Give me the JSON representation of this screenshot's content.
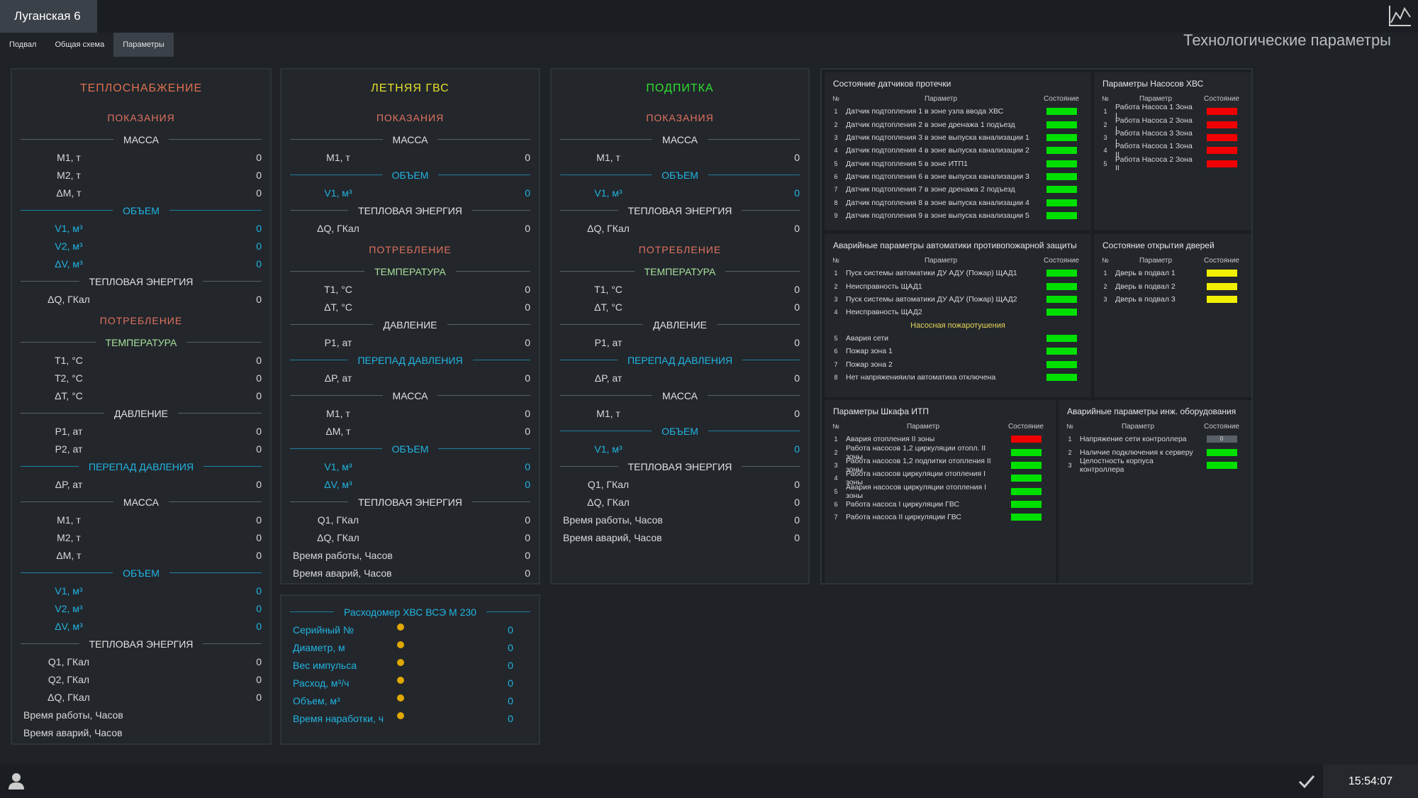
{
  "header": {
    "title": "Луганская 6",
    "page_title": "Технологические параметры",
    "tabs": [
      "Подвал",
      "Общая схема",
      "Параметры"
    ],
    "active_tab": 2
  },
  "panels": [
    {
      "title": "ТЕПЛОСНАБЖЕНИЕ",
      "color": "#e0704f",
      "rows": [
        {
          "kind": "heading",
          "text": "ПОКАЗАНИЯ"
        },
        {
          "kind": "divider",
          "text": "МАССА",
          "style": "white"
        },
        {
          "kind": "param",
          "label": "M1, т",
          "value": 0
        },
        {
          "kind": "param",
          "label": "M2, т",
          "value": 0
        },
        {
          "kind": "param",
          "label": "ΔM, т",
          "value": 0
        },
        {
          "kind": "divider",
          "text": "ОБЪЕМ",
          "style": "cyan"
        },
        {
          "kind": "param",
          "label": "V1, м³",
          "value": 0,
          "style": "cyan"
        },
        {
          "kind": "param",
          "label": "V2, м³",
          "value": 0,
          "style": "cyan"
        },
        {
          "kind": "param",
          "label": "ΔV, м³",
          "value": 0,
          "style": "cyan"
        },
        {
          "kind": "divider",
          "text": "ТЕПЛОВАЯ ЭНЕРГИЯ",
          "style": "white"
        },
        {
          "kind": "param",
          "label": "ΔQ, ГКал",
          "value": 0
        },
        {
          "kind": "heading",
          "text": "ПОТРЕБЛЕНИЕ"
        },
        {
          "kind": "divider",
          "text": "ТЕМПЕРАТУРА",
          "style": "green"
        },
        {
          "kind": "param",
          "label": "T1, °C",
          "value": 0
        },
        {
          "kind": "param",
          "label": "T2, °C",
          "value": 0
        },
        {
          "kind": "param",
          "label": "ΔT, °C",
          "value": 0
        },
        {
          "kind": "divider",
          "text": "ДАВЛЕНИЕ",
          "style": "white"
        },
        {
          "kind": "param",
          "label": "P1, ат",
          "value": 0
        },
        {
          "kind": "param",
          "label": "P2, ат",
          "value": 0
        },
        {
          "kind": "divider",
          "text": "ПЕРЕПАД ДАВЛЕНИЯ",
          "style": "cyan"
        },
        {
          "kind": "param",
          "label": "ΔP, ат",
          "value": 0
        },
        {
          "kind": "divider",
          "text": "МАССА",
          "style": "white"
        },
        {
          "kind": "param",
          "label": "M1, т",
          "value": 0
        },
        {
          "kind": "param",
          "label": "M2, т",
          "value": 0
        },
        {
          "kind": "param",
          "label": "ΔM, т",
          "value": 0
        },
        {
          "kind": "divider",
          "text": "ОБЪЕМ",
          "style": "cyan"
        },
        {
          "kind": "param",
          "label": "V1, м³",
          "value": 0,
          "style": "cyan"
        },
        {
          "kind": "param",
          "label": "V2, м³",
          "value": 0,
          "style": "cyan"
        },
        {
          "kind": "param",
          "label": "ΔV, м³",
          "value": 0,
          "style": "cyan"
        },
        {
          "kind": "divider",
          "text": "ТЕПЛОВАЯ ЭНЕРГИЯ",
          "style": "white"
        },
        {
          "kind": "param",
          "label": "Q1, ГКал",
          "value": 0
        },
        {
          "kind": "param",
          "label": "Q2, ГКал",
          "value": 0
        },
        {
          "kind": "param",
          "label": "ΔQ, ГКал",
          "value": 0
        },
        {
          "kind": "total",
          "label": "Время работы, Часов"
        },
        {
          "kind": "total",
          "label": "Время аварий, Часов"
        }
      ]
    },
    {
      "title": "ЛЕТНЯЯ ГВС",
      "color": "#e6e02a",
      "rows": [
        {
          "kind": "heading",
          "text": "ПОКАЗАНИЯ"
        },
        {
          "kind": "divider",
          "text": "МАССА",
          "style": "white"
        },
        {
          "kind": "param",
          "label": "M1, т",
          "value": 0
        },
        {
          "kind": "divider",
          "text": "ОБЪЕМ",
          "style": "cyan"
        },
        {
          "kind": "param",
          "label": "V1, м³",
          "value": 0,
          "style": "cyan"
        },
        {
          "kind": "divider",
          "text": "ТЕПЛОВАЯ ЭНЕРГИЯ",
          "style": "white"
        },
        {
          "kind": "param",
          "label": "ΔQ, ГКал",
          "value": 0
        },
        {
          "kind": "heading",
          "text": "ПОТРЕБЛЕНИЕ"
        },
        {
          "kind": "divider",
          "text": "ТЕМПЕРАТУРА",
          "style": "green"
        },
        {
          "kind": "param",
          "label": "T1, °C",
          "value": 0
        },
        {
          "kind": "param",
          "label": "ΔT, °C",
          "value": 0
        },
        {
          "kind": "divider",
          "text": "ДАВЛЕНИЕ",
          "style": "white"
        },
        {
          "kind": "param",
          "label": "P1, ат",
          "value": 0
        },
        {
          "kind": "divider",
          "text": "ПЕРЕПАД ДАВЛЕНИЯ",
          "style": "cyan"
        },
        {
          "kind": "param",
          "label": "ΔP, ат",
          "value": 0
        },
        {
          "kind": "divider",
          "text": "МАССА",
          "style": "white"
        },
        {
          "kind": "param",
          "label": "M1, т",
          "value": 0
        },
        {
          "kind": "param",
          "label": "ΔM, т",
          "value": 0
        },
        {
          "kind": "divider",
          "text": "ОБЪЕМ",
          "style": "cyan"
        },
        {
          "kind": "param",
          "label": "V1, м³",
          "value": 0,
          "style": "cyan"
        },
        {
          "kind": "param",
          "label": "ΔV, м³",
          "value": 0,
          "style": "cyan"
        },
        {
          "kind": "divider",
          "text": "ТЕПЛОВАЯ ЭНЕРГИЯ",
          "style": "white"
        },
        {
          "kind": "param",
          "label": "Q1, ГКал",
          "value": 0
        },
        {
          "kind": "param",
          "label": "ΔQ, ГКал",
          "value": 0
        },
        {
          "kind": "total",
          "label": "Время работы, Часов",
          "value": 0
        },
        {
          "kind": "total",
          "label": "Время аварий, Часов",
          "value": 0
        }
      ]
    },
    {
      "title": "ПОДПИТКА",
      "color": "#2ee02e",
      "rows": [
        {
          "kind": "heading",
          "text": "ПОКАЗАНИЯ"
        },
        {
          "kind": "divider",
          "text": "МАССА",
          "style": "white"
        },
        {
          "kind": "param",
          "label": "M1, т",
          "value": 0
        },
        {
          "kind": "divider",
          "text": "ОБЪЕМ",
          "style": "cyan"
        },
        {
          "kind": "param",
          "label": "V1, м³",
          "value": 0,
          "style": "cyan"
        },
        {
          "kind": "divider",
          "text": "ТЕПЛОВАЯ ЭНЕРГИЯ",
          "style": "white"
        },
        {
          "kind": "param",
          "label": "ΔQ, ГКал",
          "value": 0
        },
        {
          "kind": "heading",
          "text": "ПОТРЕБЛЕНИЕ"
        },
        {
          "kind": "divider",
          "text": "ТЕМПЕРАТУРА",
          "style": "green"
        },
        {
          "kind": "param",
          "label": "T1, °C",
          "value": 0
        },
        {
          "kind": "param",
          "label": "ΔT, °C",
          "value": 0
        },
        {
          "kind": "divider",
          "text": "ДАВЛЕНИЕ",
          "style": "white"
        },
        {
          "kind": "param",
          "label": "P1, ат",
          "value": 0
        },
        {
          "kind": "divider",
          "text": "ПЕРЕПАД ДАВЛЕНИЯ",
          "style": "cyan"
        },
        {
          "kind": "param",
          "label": "ΔP, ат",
          "value": 0
        },
        {
          "kind": "divider",
          "text": "МАССА",
          "style": "white"
        },
        {
          "kind": "param",
          "label": "M1, т",
          "value": 0
        },
        {
          "kind": "divider",
          "text": "ОБЪЕМ",
          "style": "cyan"
        },
        {
          "kind": "param",
          "label": "V1, м³",
          "value": 0,
          "style": "cyan"
        },
        {
          "kind": "divider",
          "text": "ТЕПЛОВАЯ ЭНЕРГИЯ",
          "style": "white"
        },
        {
          "kind": "param",
          "label": "Q1, ГКал",
          "value": 0
        },
        {
          "kind": "param",
          "label": "ΔQ, ГКал",
          "value": 0
        },
        {
          "kind": "total",
          "label": "Время работы, Часов",
          "value": 0
        },
        {
          "kind": "total",
          "label": "Время аварий, Часов",
          "value": 0
        }
      ]
    }
  ],
  "flowmeter": {
    "title": "Расходомер ХВС ВСЭ М 230",
    "rows": [
      {
        "label": "Серийный №",
        "value": 0
      },
      {
        "label": "Диаметр, м",
        "value": 0
      },
      {
        "label": "Вес импульса",
        "value": 0
      },
      {
        "label": "Расход, м³/ч",
        "value": 0
      },
      {
        "label": "Объем, м³",
        "value": 0
      },
      {
        "label": "Время наработки, ч",
        "value": 0
      }
    ]
  },
  "tables": [
    {
      "title": "Состояние датчиков протечки",
      "columns": [
        "№",
        "Параметр",
        "Состояние"
      ],
      "rows": [
        {
          "n": 1,
          "label": "Датчик подтопления 1 в зоне узла ввода ХВС",
          "state": "green"
        },
        {
          "n": 2,
          "label": "Датчик подтопления 2  в зоне дренажа 1 подъезд",
          "state": "green"
        },
        {
          "n": 3,
          "label": "Датчик подтопления 3 в зоне выпуска канализации 1",
          "state": "green"
        },
        {
          "n": 4,
          "label": "Датчик подтопления 4 в зоне выпуска канализации 2",
          "state": "green"
        },
        {
          "n": 5,
          "label": "Датчик подтопления 5 в зоне ИТП1",
          "state": "green"
        },
        {
          "n": 6,
          "label": "Датчик подтопления 6 в зоне выпуска канализации 3",
          "state": "green"
        },
        {
          "n": 7,
          "label": "Датчик подтопления 7 в зоне дренажа 2 подъезд",
          "state": "green"
        },
        {
          "n": 8,
          "label": "Датчик подтопления 8 в зоне выпуска канализации 4",
          "state": "green"
        },
        {
          "n": 9,
          "label": "Датчик подтопления 9 в зоне выпуска канализации 5",
          "state": "green"
        }
      ]
    },
    {
      "title": "Параметры Насосов ХВС",
      "columns": [
        "№",
        "Параметр",
        "Состояние"
      ],
      "rows": [
        {
          "n": 1,
          "label": "Работа Насоса 1 Зона I",
          "state": "red"
        },
        {
          "n": 2,
          "label": "Работа Насоса 2 Зона I",
          "state": "red"
        },
        {
          "n": 3,
          "label": "Работа Насоса 3 Зона I",
          "state": "red"
        },
        {
          "n": 4,
          "label": "Работа Насоса 1 Зона II",
          "state": "red"
        },
        {
          "n": 5,
          "label": "Работа Насоса 2 Зона II",
          "state": "red"
        }
      ]
    },
    {
      "title": "Аварийные параметры автоматики противопожарной защиты",
      "columns": [
        "№",
        "Параметр",
        "Состояние"
      ],
      "rows": [
        {
          "n": 1,
          "label": "Пуск системы автоматики ДУ АДУ (Пожар) ЩАД1",
          "state": "green"
        },
        {
          "n": 2,
          "label": "Неисправность ЩАД1",
          "state": "green"
        },
        {
          "n": 3,
          "label": "Пуск системы автоматики ДУ АДУ (Пожар) ЩАД2",
          "state": "green"
        },
        {
          "n": 4,
          "label": "Неисправность ЩАД2",
          "state": "green"
        },
        {
          "subheader": "Насосная пожаротушения"
        },
        {
          "n": 5,
          "label": "Авария сети",
          "state": "green"
        },
        {
          "n": 6,
          "label": "Пожар зона 1",
          "state": "green"
        },
        {
          "n": 7,
          "label": "Пожар зона 2",
          "state": "green"
        },
        {
          "n": 8,
          "label": "Нет напряженияили автоматика отключена",
          "state": "green"
        }
      ]
    },
    {
      "title": "Состояние открытия дверей",
      "columns": [
        "№",
        "Параметр",
        "Состояние"
      ],
      "rows": [
        {
          "n": 1,
          "label": "Дверь  в подвал 1",
          "state": "yellow"
        },
        {
          "n": 2,
          "label": "Дверь  в подвал 2",
          "state": "yellow"
        },
        {
          "n": 3,
          "label": "Дверь  в подвал 3",
          "state": "yellow"
        }
      ]
    },
    {
      "title": "Параметры Шкафа  ИТП",
      "columns": [
        "№",
        "Параметр",
        "Состояние"
      ],
      "rows": [
        {
          "n": 1,
          "label": "Авария отопления II зоны",
          "state": "red"
        },
        {
          "n": 2,
          "label": "Работа насосов 1,2 циркуляции отопл. II зоны",
          "state": "green"
        },
        {
          "n": 3,
          "label": "Работа насосов 1,2 подпитки отопления II зоны",
          "state": "green"
        },
        {
          "n": 4,
          "label": "Работа насосов циркуляции отопления I зоны",
          "state": "green"
        },
        {
          "n": 5,
          "label": "Авария насосов циркуляции отопления I зоны",
          "state": "green"
        },
        {
          "n": 6,
          "label": "Работа насоса I циркуляции ГВС",
          "state": "green"
        },
        {
          "n": 7,
          "label": "Работа насоса II циркуляции ГВС",
          "state": "green"
        }
      ]
    },
    {
      "title": "Аварийные параметры инж. оборудования",
      "columns": [
        "№",
        "Параметр",
        "Состояние"
      ],
      "rows": [
        {
          "n": 1,
          "label": "Напряжение сети контроллера",
          "state": "grey",
          "value": 0
        },
        {
          "n": 2,
          "label": "Наличие подключения к серверу",
          "state": "green"
        },
        {
          "n": 3,
          "label": "Целостность корпуса контроллера",
          "state": "green"
        }
      ]
    }
  ],
  "footer": {
    "time": "15:54:07"
  }
}
